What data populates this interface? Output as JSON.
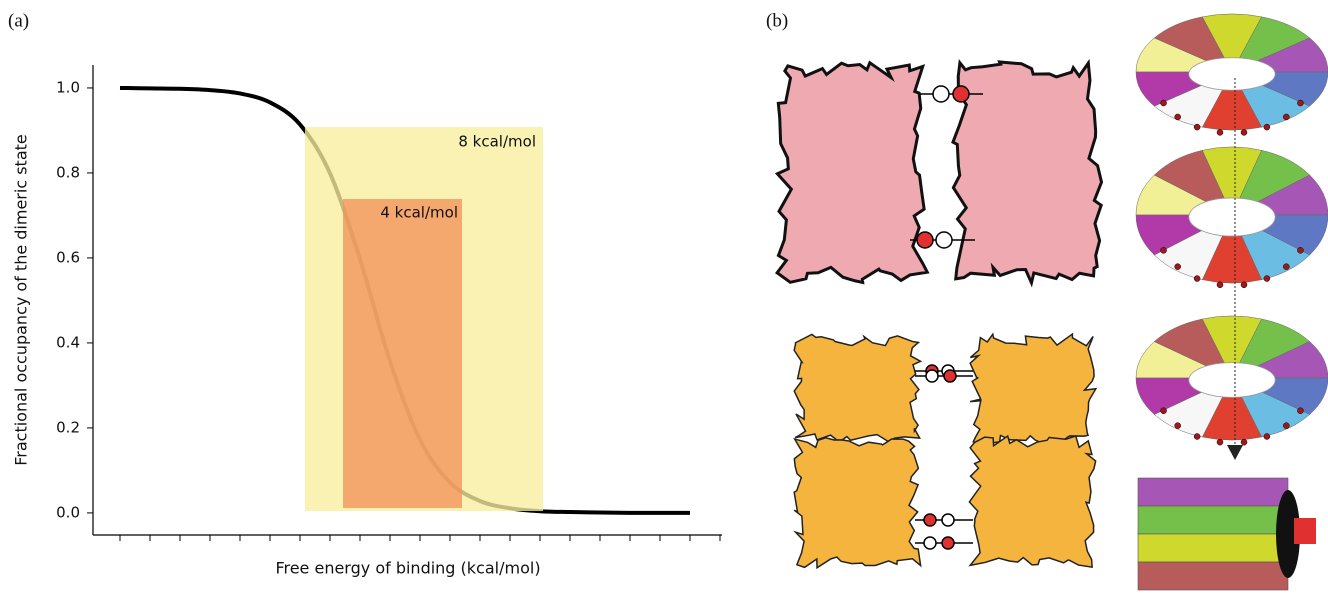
{
  "figure_labels": {
    "a": "(a)",
    "b": "(b)"
  },
  "chart_data": {
    "type": "line",
    "xlabel": "Free energy of binding (kcal/mol)",
    "ylabel": "Fractional occupancy of the dimeric state",
    "categories": [
      null,
      null,
      null,
      null,
      null,
      null,
      null,
      null,
      null,
      null,
      null,
      null,
      null,
      null,
      null,
      null,
      null,
      null,
      null,
      null,
      null
    ],
    "values": [
      1.0,
      0.999,
      0.998,
      0.995,
      0.987,
      0.966,
      0.914,
      0.799,
      0.597,
      0.357,
      0.172,
      0.072,
      0.028,
      0.011,
      0.004,
      0.002,
      0.001,
      0.0,
      0.0,
      0.0,
      null
    ],
    "color": "#000000",
    "ylim": [
      -0.052,
      1.054
    ],
    "yticks": [
      {
        "value": 0,
        "label": "0.0"
      },
      0.2,
      0.4,
      0.6,
      0.8,
      {
        "value": 1,
        "label": "1.0"
      }
    ],
    "annotations": [
      {
        "text": "8 kcal/mol",
        "color": "#f7ee9c"
      },
      {
        "text": "4 kcal/mol",
        "color": "#f2935a"
      }
    ]
  }
}
